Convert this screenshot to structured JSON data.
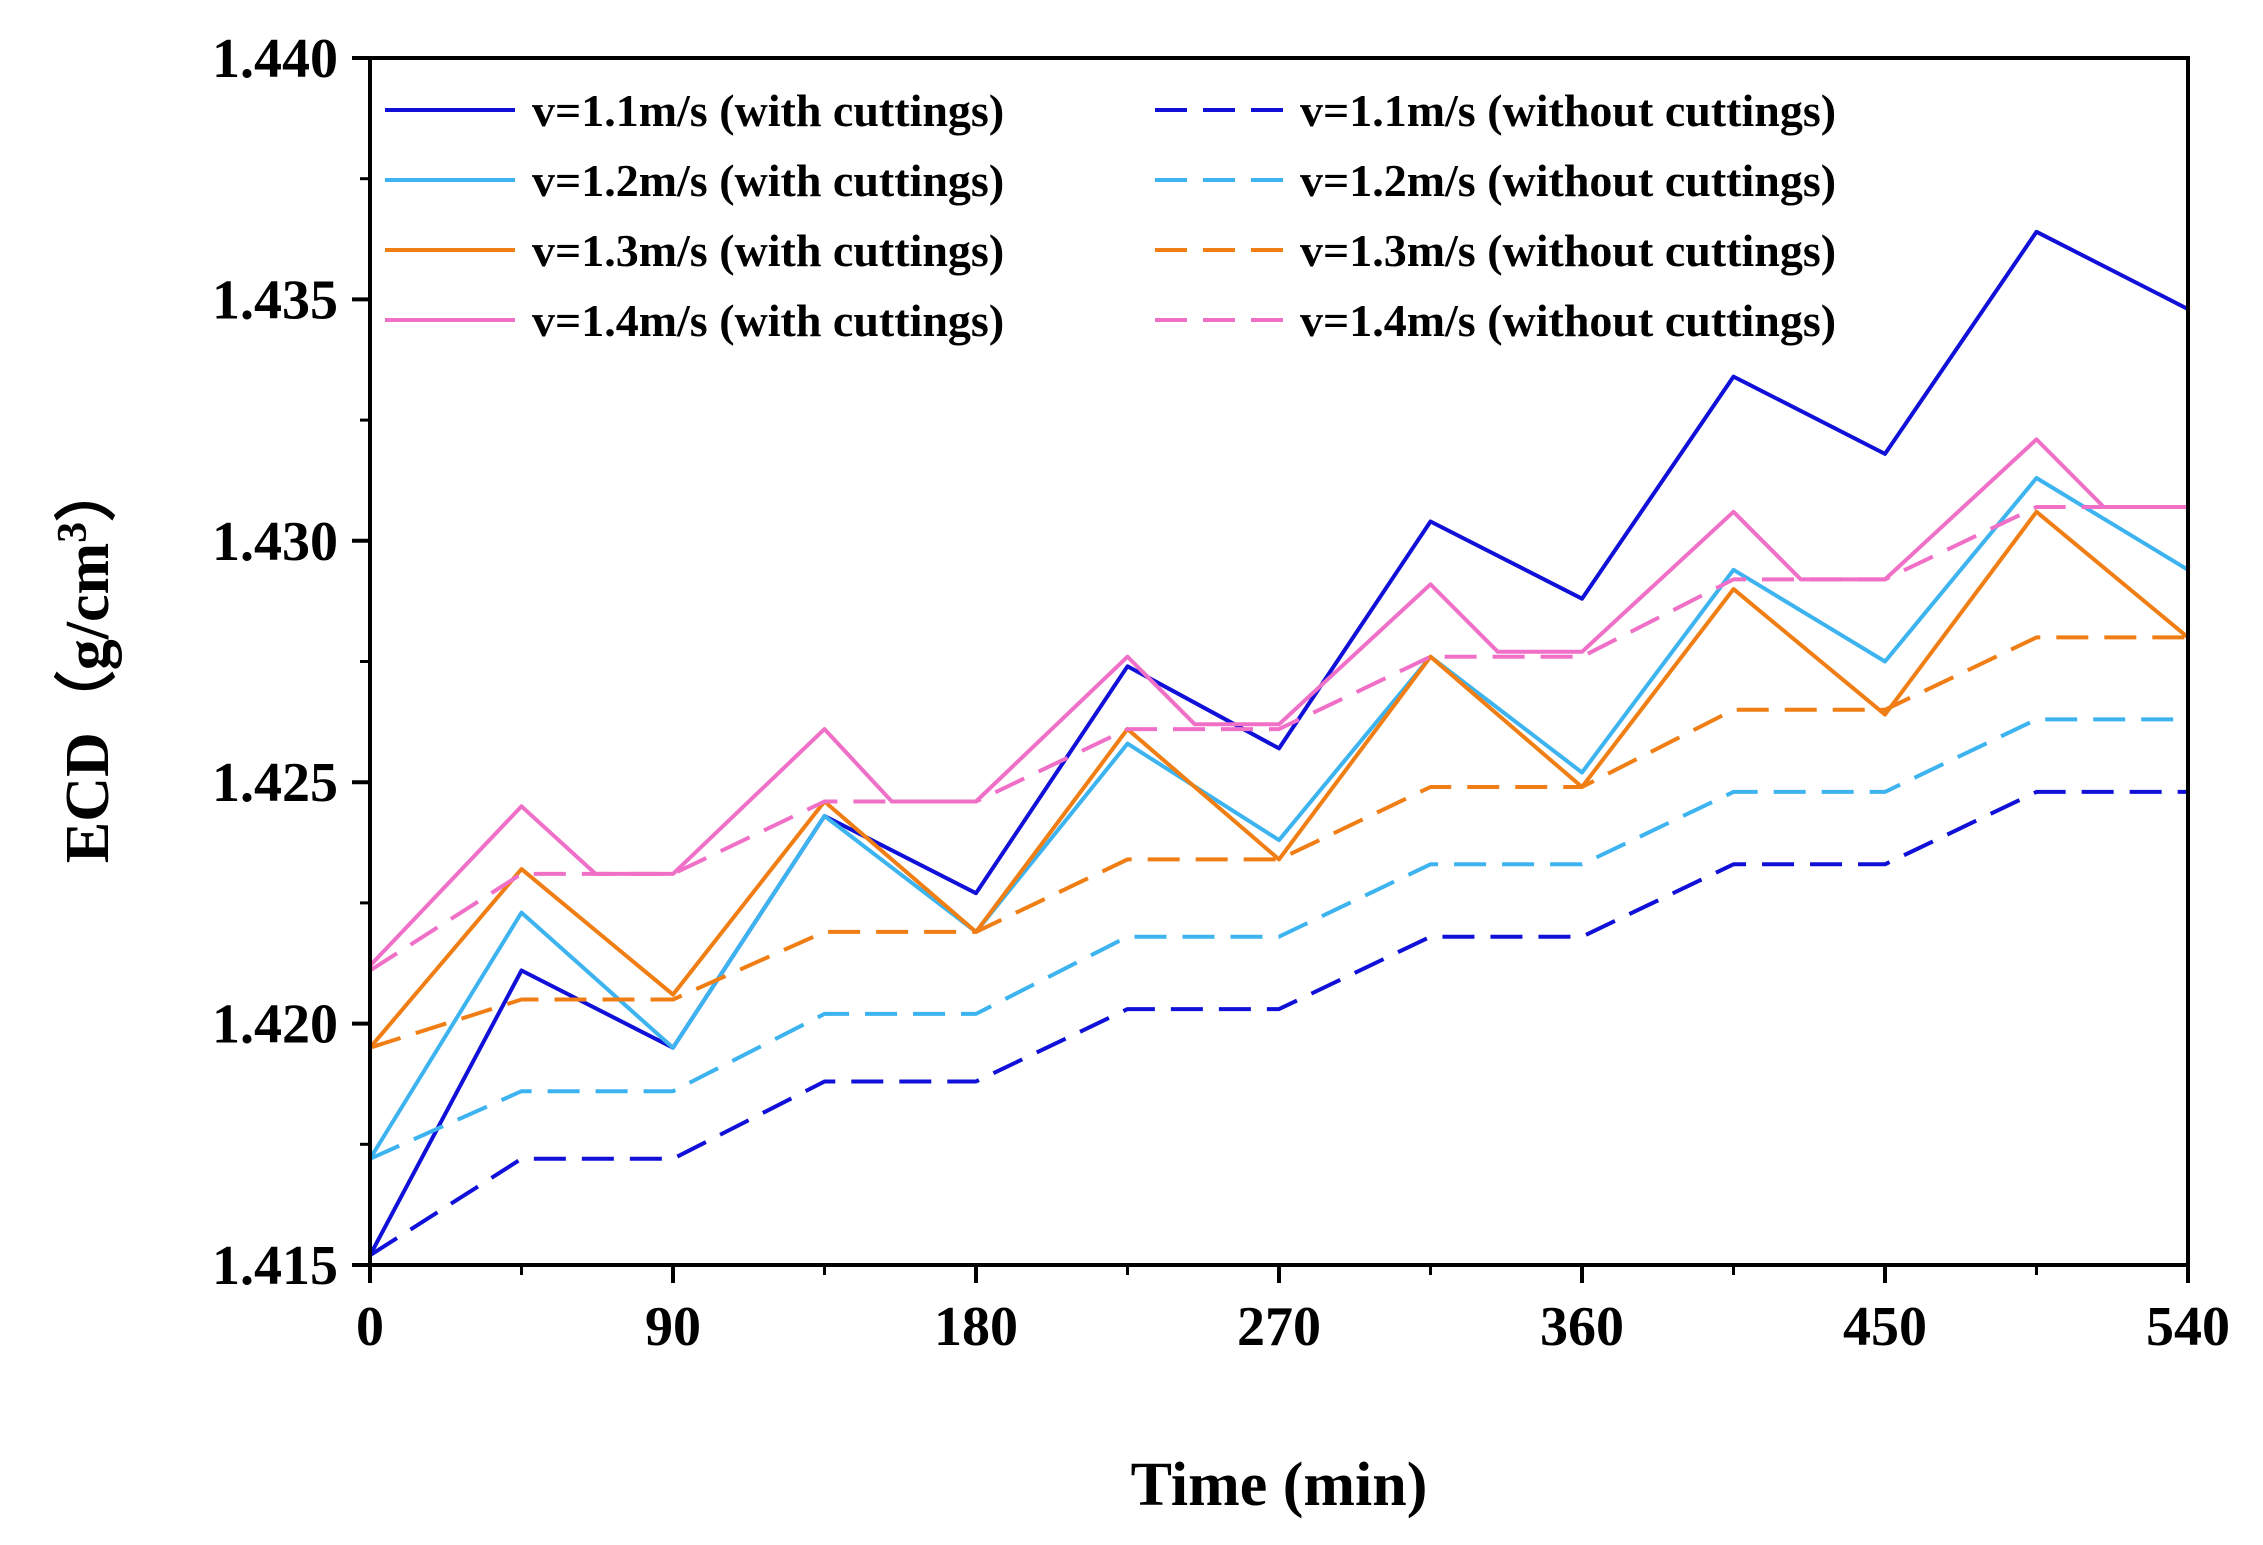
{
  "chart_data": {
    "type": "line",
    "xlabel": "Time (min)",
    "ylabel": "ECD（g/cm",
    "ylabel_superscript": "3",
    "ylabel_close": "）",
    "xlim": [
      0,
      540
    ],
    "ylim": [
      1.415,
      1.44
    ],
    "xticks": [
      0,
      90,
      180,
      270,
      360,
      450,
      540
    ],
    "xtick_labels": [
      "0",
      "90",
      "180",
      "270",
      "360",
      "450",
      "540"
    ],
    "yticks": [
      1.415,
      1.42,
      1.425,
      1.43,
      1.435,
      1.44
    ],
    "ytick_labels": [
      "1.415",
      "1.420",
      "1.425",
      "1.430",
      "1.435",
      "1.440"
    ],
    "legend_position": "top-left",
    "series": [
      {
        "name": "v=1.1m/s (with cuttings)",
        "color": "#1010d8",
        "dash": "solid",
        "x": [
          0,
          45,
          90,
          135,
          180,
          225,
          270,
          315,
          360,
          405,
          450,
          495,
          540
        ],
        "y": [
          1.4152,
          1.4211,
          1.4195,
          1.4243,
          1.4227,
          1.4274,
          1.4257,
          1.4304,
          1.4288,
          1.4334,
          1.4318,
          1.4364,
          1.4348
        ]
      },
      {
        "name": "v=1.1m/s (without cuttings)",
        "color": "#1010d8",
        "dash": "dashed",
        "x": [
          0,
          45,
          90,
          135,
          180,
          225,
          270,
          315,
          360,
          405,
          450,
          495,
          540
        ],
        "y": [
          1.4152,
          1.4172,
          1.4172,
          1.4188,
          1.4188,
          1.4203,
          1.4203,
          1.4218,
          1.4218,
          1.4233,
          1.4233,
          1.4248,
          1.4248
        ]
      },
      {
        "name": "v=1.2m/s (with cuttings)",
        "color": "#3db4ef",
        "dash": "solid",
        "x": [
          0,
          45,
          90,
          135,
          180,
          225,
          270,
          315,
          360,
          405,
          450,
          495,
          540
        ],
        "y": [
          1.4172,
          1.4223,
          1.4195,
          1.4243,
          1.4219,
          1.4258,
          1.4238,
          1.4276,
          1.4252,
          1.4294,
          1.4275,
          1.4313,
          1.4294
        ]
      },
      {
        "name": "v=1.2m/s (without cuttings)",
        "color": "#3db4ef",
        "dash": "dashed",
        "x": [
          0,
          45,
          90,
          135,
          180,
          225,
          270,
          315,
          360,
          405,
          450,
          495,
          540
        ],
        "y": [
          1.4172,
          1.4186,
          1.4186,
          1.4202,
          1.4202,
          1.4218,
          1.4218,
          1.4233,
          1.4233,
          1.4248,
          1.4248,
          1.4263,
          1.4263
        ]
      },
      {
        "name": "v=1.3m/s (with cuttings)",
        "color": "#f07e14",
        "dash": "solid",
        "x": [
          0,
          45,
          90,
          135,
          180,
          225,
          270,
          315,
          360,
          405,
          450,
          495,
          540
        ],
        "y": [
          1.4195,
          1.4232,
          1.4206,
          1.4246,
          1.4219,
          1.4261,
          1.4234,
          1.4276,
          1.4249,
          1.429,
          1.4264,
          1.4306,
          1.428
        ]
      },
      {
        "name": "v=1.3m/s (without cuttings)",
        "color": "#f07e14",
        "dash": "dashed",
        "x": [
          0,
          45,
          90,
          135,
          180,
          225,
          270,
          315,
          360,
          405,
          450,
          495,
          540
        ],
        "y": [
          1.4195,
          1.4205,
          1.4205,
          1.4219,
          1.4219,
          1.4234,
          1.4234,
          1.4249,
          1.4249,
          1.4265,
          1.4265,
          1.428,
          1.428
        ]
      },
      {
        "name": "v=1.4m/s (with cuttings)",
        "color": "#f070c8",
        "dash": "solid",
        "x": [
          0,
          45,
          67,
          90,
          135,
          155,
          180,
          225,
          245,
          270,
          315,
          335,
          360,
          405,
          425,
          450,
          495,
          515,
          540
        ],
        "y": [
          1.4212,
          1.4245,
          1.4231,
          1.4231,
          1.4261,
          1.4246,
          1.4246,
          1.4276,
          1.4262,
          1.4262,
          1.4291,
          1.4277,
          1.4277,
          1.4306,
          1.4292,
          1.4292,
          1.4321,
          1.4307,
          1.4307
        ]
      },
      {
        "name": "v=1.4m/s (without cuttings)",
        "color": "#f070c8",
        "dash": "dashed",
        "x": [
          0,
          45,
          90,
          135,
          180,
          225,
          270,
          315,
          360,
          405,
          450,
          495,
          540
        ],
        "y": [
          1.4211,
          1.4231,
          1.4231,
          1.4246,
          1.4246,
          1.4261,
          1.4261,
          1.4276,
          1.4276,
          1.4292,
          1.4292,
          1.4307,
          1.4307
        ]
      }
    ]
  }
}
